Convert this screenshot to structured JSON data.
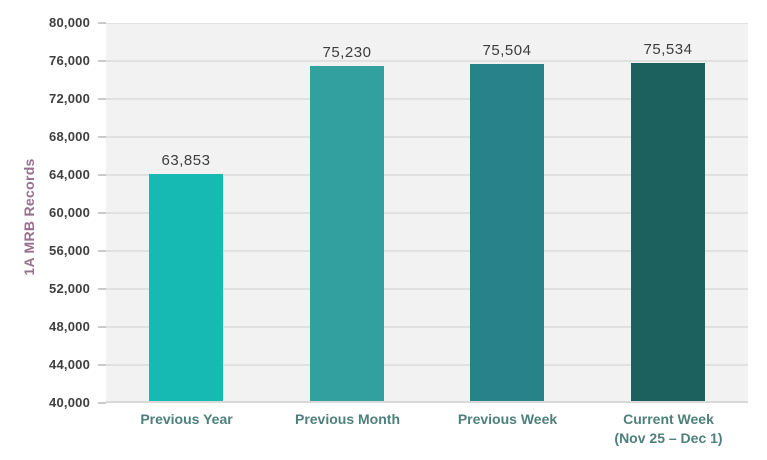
{
  "chart_data": {
    "type": "bar",
    "title": "",
    "xlabel": "",
    "ylabel": "1A MRB Records",
    "ylim": [
      40000,
      80000
    ],
    "ytick_step": 4000,
    "yticks": [
      40000,
      44000,
      48000,
      52000,
      56000,
      60000,
      64000,
      68000,
      72000,
      76000,
      80000
    ],
    "ytick_labels": [
      "40,000",
      "44,000",
      "48,000",
      "52,000",
      "56,000",
      "60,000",
      "64,000",
      "68,000",
      "72,000",
      "76,000",
      "80,000"
    ],
    "categories": [
      {
        "key": "previous-year",
        "label": "Previous Year",
        "sublabel": ""
      },
      {
        "key": "previous-month",
        "label": "Previous Month",
        "sublabel": ""
      },
      {
        "key": "previous-week",
        "label": "Previous Week",
        "sublabel": ""
      },
      {
        "key": "current-week",
        "label": "Current Week",
        "sublabel": "(Nov 25 – Dec 1)"
      }
    ],
    "values": [
      63853,
      75230,
      75504,
      75534
    ],
    "value_labels": [
      "63,853",
      "75,230",
      "75,504",
      "75,534"
    ],
    "bar_colors": [
      "#16bab2",
      "#33a0a0",
      "#28828a",
      "#1c615e"
    ],
    "legend": "none",
    "grid": true
  },
  "colors": {
    "page_bg": "#ffffff",
    "plot_bg": "#f2f2f2",
    "gridline": "#e1e1e1",
    "axis_line": "#d9d9d9",
    "tick_mark": "#c9c9c9",
    "tick_text": "#3f3f3f",
    "value_text": "#3d3d3d",
    "x_label": "#4e807b",
    "y_label": "#96718c"
  }
}
